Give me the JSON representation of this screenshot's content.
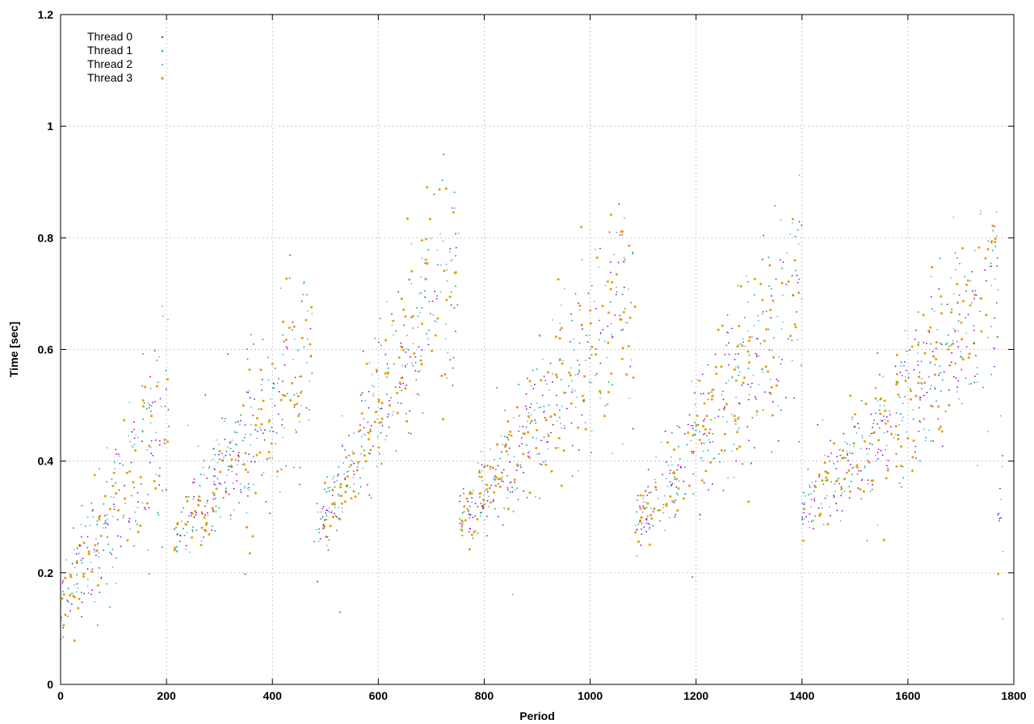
{
  "chart_data": {
    "type": "scatter",
    "title": "",
    "xlabel": "Period",
    "ylabel": "Time [sec]",
    "xlim": [
      0,
      1800
    ],
    "ylim": [
      0,
      1.2
    ],
    "xticks": [
      0,
      200,
      400,
      600,
      800,
      1000,
      1200,
      1400,
      1600,
      1800
    ],
    "yticks": [
      0,
      0.2,
      0.4,
      0.6,
      0.8,
      1,
      1.2
    ],
    "xtick_labels": [
      "0",
      "200",
      "400",
      "600",
      "800",
      "1000",
      "1200",
      "1400",
      "1600",
      "1800"
    ],
    "ytick_labels": [
      "0",
      "0.2",
      "0.4",
      "0.6",
      "0.8",
      "1",
      "1.2"
    ],
    "grid": true,
    "legend_position": "top-left",
    "series": [
      {
        "name": "Thread 0",
        "color": "#9400d3"
      },
      {
        "name": "Thread 1",
        "color": "#009e73"
      },
      {
        "name": "Thread 2",
        "color": "#56b4e9"
      },
      {
        "name": "Thread 3",
        "color": "#e69f00"
      }
    ],
    "cycles": [
      {
        "x_start": 0,
        "x_end": 205,
        "y_start": 0.13,
        "y_end": 0.5
      },
      {
        "x_start": 215,
        "x_end": 475,
        "y_start": 0.26,
        "y_end": 0.6
      },
      {
        "x_start": 478,
        "x_end": 752,
        "y_start": 0.25,
        "y_end": 0.78
      },
      {
        "x_start": 752,
        "x_end": 1085,
        "y_start": 0.28,
        "y_end": 0.7
      },
      {
        "x_start": 1085,
        "x_end": 1400,
        "y_start": 0.28,
        "y_end": 0.7
      },
      {
        "x_start": 1400,
        "x_end": 1770,
        "y_start": 0.3,
        "y_end": 0.72
      },
      {
        "x_start": 1770,
        "x_end": 1780,
        "y_start": 0.3,
        "y_end": 0.35
      }
    ]
  }
}
